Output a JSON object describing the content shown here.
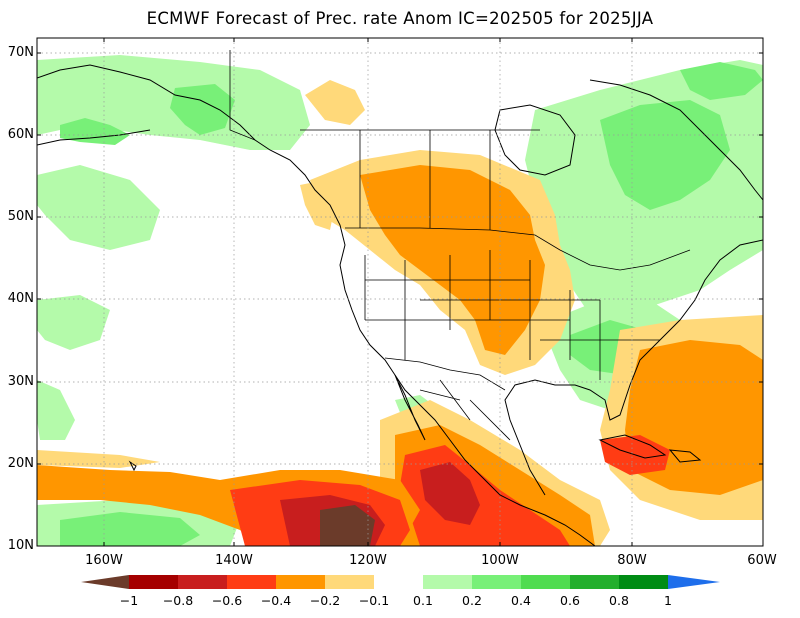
{
  "title": "ECMWF Forecast of Prec. rate Anom IC=202505 for 2025JJA",
  "map": {
    "lat_labels": [
      "70N",
      "60N",
      "50N",
      "40N",
      "30N",
      "20N",
      "10N"
    ],
    "lon_labels": [
      "160W",
      "140W",
      "120W",
      "100W",
      "80W",
      "60W"
    ],
    "extent": {
      "lon_min": -172,
      "lon_max": -60,
      "lat_min": 10,
      "lat_max": 72
    }
  },
  "colorbar": {
    "labels": [
      "−1",
      "−0.8",
      "−0.6",
      "−0.4",
      "−0.2",
      "−0.1",
      "0.1",
      "0.2",
      "0.4",
      "0.6",
      "0.8",
      "1"
    ],
    "colors": [
      "#6b3b2a",
      "#a50000",
      "#c81e1e",
      "#ff3c14",
      "#ff9600",
      "#ffd97a",
      "#ffffff",
      "#b4faaa",
      "#78f078",
      "#50dc50",
      "#23af2d",
      "#008c14",
      "#1e6eeb"
    ],
    "legend": [
      {
        "range": "< -1",
        "color": "#6b3b2a"
      },
      {
        "range": "-1 to -0.8",
        "color": "#a50000"
      },
      {
        "range": "-0.8 to -0.6",
        "color": "#c81e1e"
      },
      {
        "range": "-0.6 to -0.4",
        "color": "#ff3c14"
      },
      {
        "range": "-0.4 to -0.2",
        "color": "#ff9600"
      },
      {
        "range": "-0.2 to -0.1",
        "color": "#ffd97a"
      },
      {
        "range": "-0.1 to 0.1",
        "color": "#ffffff"
      },
      {
        "range": "0.1 to 0.2",
        "color": "#b4faaa"
      },
      {
        "range": "0.2 to 0.4",
        "color": "#78f078"
      },
      {
        "range": "0.4 to 0.6",
        "color": "#50dc50"
      },
      {
        "range": "0.6 to 0.8",
        "color": "#23af2d"
      },
      {
        "range": "0.8 to 1",
        "color": "#008c14"
      },
      {
        "range": "> 1",
        "color": "#1e6eeb"
      }
    ]
  }
}
